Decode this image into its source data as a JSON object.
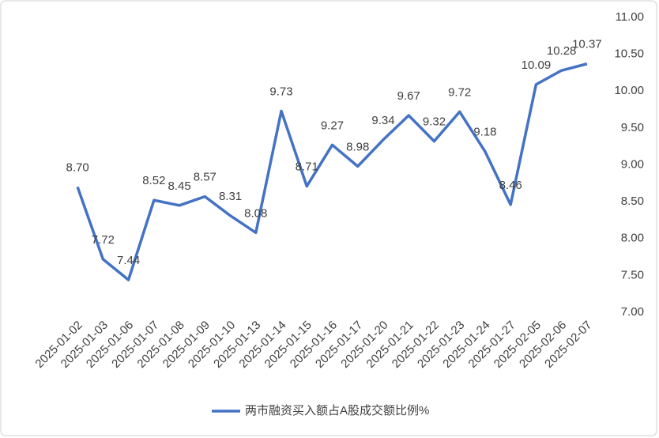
{
  "chart_data": {
    "type": "line",
    "categories": [
      "2025-01-02",
      "2025-01-03",
      "2025-01-06",
      "2025-01-07",
      "2025-01-08",
      "2025-01-09",
      "2025-01-10",
      "2025-01-13",
      "2025-01-14",
      "2025-01-15",
      "2025-01-16",
      "2025-01-17",
      "2025-01-20",
      "2025-01-21",
      "2025-01-22",
      "2025-01-23",
      "2025-01-24",
      "2025-01-27",
      "2025-02-05",
      "2025-02-06",
      "2025-02-07"
    ],
    "series": [
      {
        "name": "两市融资买入额占A股成交额比例%",
        "color": "#4472c4",
        "values": [
          8.7,
          7.72,
          7.44,
          8.52,
          8.45,
          8.57,
          8.31,
          8.08,
          9.73,
          8.71,
          9.27,
          8.98,
          9.34,
          9.67,
          9.32,
          9.72,
          9.18,
          8.46,
          10.09,
          10.28,
          10.37
        ],
        "value_labels": [
          "8.70",
          "7.72",
          "7.44",
          "8.52",
          "8.45",
          "8.57",
          "8.31",
          "8.08",
          "9.73",
          "8.71",
          "9.27",
          "8.98",
          "9.34",
          "9.67",
          "9.32",
          "9.72",
          "9.18",
          "8.46",
          "10.09",
          "10.28",
          "10.37"
        ]
      }
    ],
    "ylim": [
      7,
      11
    ],
    "yticks": [
      {
        "value": 7,
        "label": "7.00"
      },
      {
        "value": 7.5,
        "label": "7.50"
      },
      {
        "value": 8,
        "label": "8.00"
      },
      {
        "value": 8.5,
        "label": "8.50"
      },
      {
        "value": 9,
        "label": "9.00"
      },
      {
        "value": 9.5,
        "label": "9.50"
      },
      {
        "value": 10,
        "label": "10.00"
      },
      {
        "value": 10.5,
        "label": "10.50"
      },
      {
        "value": 11,
        "label": "11.00"
      }
    ],
    "y_axis_side": "right",
    "grid": false,
    "legend": "bottom"
  }
}
